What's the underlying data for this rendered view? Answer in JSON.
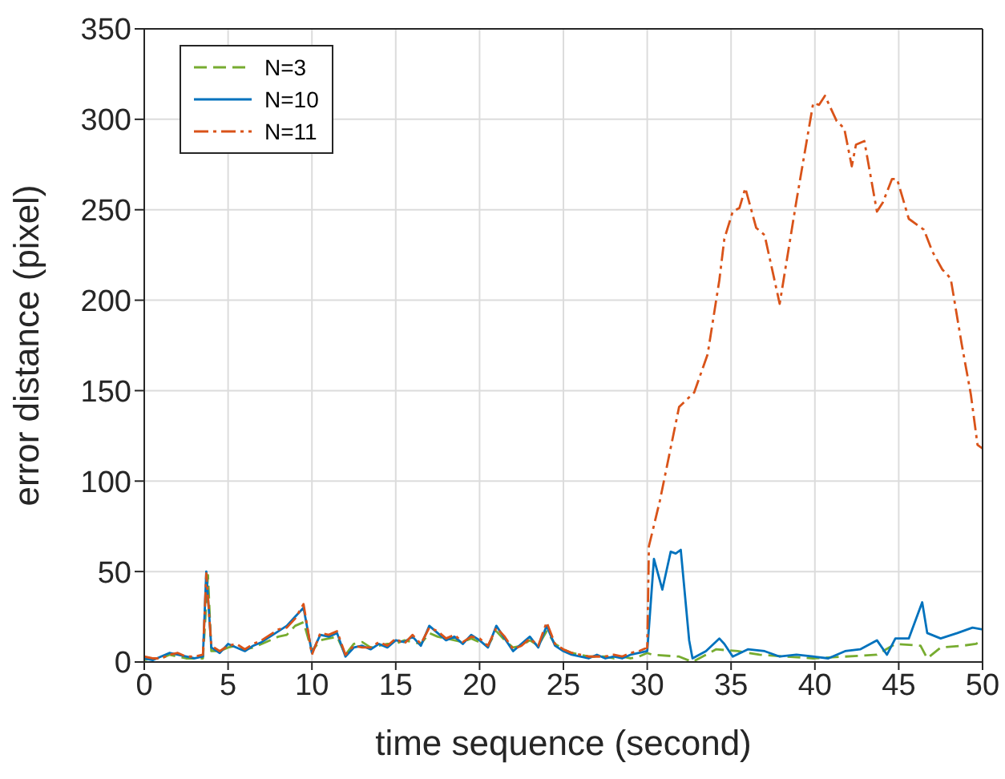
{
  "chart_data": {
    "type": "line",
    "xlabel": "time sequence (second)",
    "ylabel": "error distance (pixel)",
    "xlim": [
      0,
      50
    ],
    "xticks": [
      0,
      5,
      10,
      15,
      20,
      25,
      30,
      35,
      40,
      45,
      50
    ],
    "ylim": [
      0,
      350
    ],
    "yticks": [
      0,
      50,
      100,
      150,
      200,
      250,
      300,
      350
    ],
    "grid": true,
    "legend": "top left",
    "marker": "none",
    "series": [
      {
        "name": "N=3",
        "color": "#77ac30",
        "line_style": "dashed",
        "x": [
          0,
          0.5,
          1,
          1.5,
          2,
          2.5,
          3,
          3.5,
          3.8,
          4,
          4.5,
          5,
          5.5,
          6,
          6.5,
          7,
          7.5,
          8,
          8.5,
          9,
          9.5,
          10,
          10.5,
          11,
          11.5,
          12,
          12.5,
          13,
          13.5,
          14,
          14.5,
          15,
          15.5,
          16,
          16.5,
          17,
          17.5,
          18,
          18.5,
          19,
          19.5,
          20,
          20.5,
          21,
          21.5,
          22,
          22.5,
          23,
          23.5,
          24,
          24.5,
          25,
          25.5,
          26,
          26.5,
          27,
          27.5,
          28,
          28.5,
          29,
          29.5,
          30,
          30.3,
          31.9,
          32.7,
          34.1,
          35.4,
          36.7,
          38.3,
          39.9,
          41.8,
          43.7,
          44.8,
          46.3,
          46.7,
          47.5,
          48.8,
          49.6,
          50
        ],
        "values": [
          1,
          2,
          2,
          4,
          3,
          2,
          2,
          2,
          48,
          6,
          6,
          8,
          9,
          7,
          8,
          10,
          12,
          14,
          15,
          20,
          22,
          6,
          12,
          13,
          14,
          4,
          10,
          11,
          8,
          9,
          10,
          10,
          12,
          11,
          10,
          16,
          14,
          13,
          12,
          11,
          13,
          11,
          9,
          17,
          12,
          8,
          9,
          12,
          9,
          17,
          10,
          7,
          5,
          4,
          3,
          3,
          3,
          2,
          3,
          2,
          3,
          5,
          4,
          3,
          0,
          7,
          6,
          4,
          3,
          2,
          3,
          4,
          10,
          9,
          2,
          8,
          9,
          10,
          12
        ]
      },
      {
        "name": "N=10",
        "color": "#0072bd",
        "line_style": "solid",
        "x": [
          0,
          0.5,
          1,
          1.5,
          2,
          2.5,
          3,
          3.5,
          3.7,
          4,
          4.5,
          5,
          5.5,
          6,
          6.5,
          7,
          7.5,
          8,
          8.5,
          9,
          9.5,
          10,
          10.5,
          11,
          11.5,
          12,
          12.5,
          13,
          13.5,
          14,
          14.5,
          15,
          15.5,
          16,
          16.5,
          17,
          17.5,
          18,
          18.5,
          19,
          19.5,
          20,
          20.5,
          21,
          21.5,
          22,
          22.5,
          23,
          23.5,
          24,
          24.5,
          25,
          25.5,
          26,
          26.5,
          27,
          27.5,
          28,
          28.5,
          29,
          29.5,
          30,
          30.4,
          30.9,
          31.4,
          31.7,
          32,
          32.5,
          32.7,
          33.5,
          34.3,
          34.6,
          35.1,
          36,
          37,
          37.9,
          38.9,
          39.9,
          40.8,
          41.8,
          42.7,
          43.7,
          44.3,
          44.8,
          45.6,
          46.4,
          46.7,
          47.5,
          48.5,
          49.4,
          50
        ],
        "values": [
          2,
          1,
          3,
          5,
          4,
          3,
          2,
          3,
          50,
          8,
          5,
          10,
          8,
          6,
          9,
          11,
          14,
          17,
          20,
          25,
          30,
          5,
          15,
          14,
          16,
          3,
          8,
          9,
          7,
          10,
          8,
          12,
          11,
          14,
          9,
          20,
          16,
          12,
          14,
          10,
          15,
          12,
          8,
          20,
          13,
          6,
          10,
          14,
          8,
          20,
          9,
          6,
          4,
          3,
          2,
          4,
          2,
          3,
          2,
          4,
          5,
          6,
          57,
          40,
          61,
          60,
          62,
          12,
          2,
          6,
          13,
          10,
          3,
          7,
          6,
          3,
          4,
          3,
          2,
          6,
          7,
          12,
          4,
          13,
          13,
          33,
          16,
          13,
          16,
          19,
          18
        ]
      },
      {
        "name": "N=11",
        "color": "#d95319",
        "line_style": "dashdot",
        "x": [
          0,
          0.5,
          1,
          1.5,
          2,
          2.5,
          3,
          3.5,
          3.7,
          4,
          4.5,
          5,
          5.5,
          6,
          6.5,
          7,
          7.5,
          8,
          8.5,
          9,
          9.5,
          10,
          10.5,
          11,
          11.5,
          12,
          12.5,
          13,
          13.5,
          14,
          14.5,
          15,
          15.5,
          16,
          16.5,
          17,
          17.5,
          18,
          18.5,
          19,
          19.5,
          20,
          20.5,
          21,
          21.5,
          22,
          22.5,
          23,
          23.5,
          24,
          24.5,
          25,
          25.5,
          26,
          26.5,
          27,
          27.5,
          28,
          28.5,
          29,
          29.5,
          30,
          30.1,
          30.75,
          31.9,
          32.8,
          33.6,
          34.3,
          34.6,
          35.1,
          35.5,
          35.85,
          36.5,
          37,
          37.9,
          38.9,
          39.9,
          40.25,
          40.6,
          41.3,
          41.75,
          42.2,
          42.45,
          42.95,
          43.7,
          44.05,
          44.6,
          44.9,
          45.6,
          46.5,
          47,
          47.6,
          48.1,
          48.75,
          49.3,
          49.7,
          50
        ],
        "values": [
          3,
          2,
          2,
          4,
          5,
          3,
          3,
          4,
          49,
          9,
          6,
          9,
          10,
          7,
          10,
          12,
          15,
          18,
          19,
          24,
          32,
          4,
          16,
          15,
          17,
          4,
          9,
          8,
          8,
          11,
          9,
          13,
          10,
          15,
          10,
          19,
          17,
          13,
          15,
          11,
          14,
          13,
          9,
          19,
          14,
          7,
          9,
          13,
          9,
          22,
          10,
          7,
          5,
          4,
          3,
          3,
          3,
          4,
          3,
          5,
          6,
          8,
          64,
          89,
          141,
          149,
          170,
          211,
          234,
          249,
          251,
          262,
          240,
          236,
          198,
          255,
          309,
          308,
          313,
          299,
          295,
          274,
          286,
          288,
          249,
          254,
          267,
          267,
          245,
          239,
          227,
          217,
          212,
          176,
          148,
          120,
          118
        ]
      }
    ]
  }
}
